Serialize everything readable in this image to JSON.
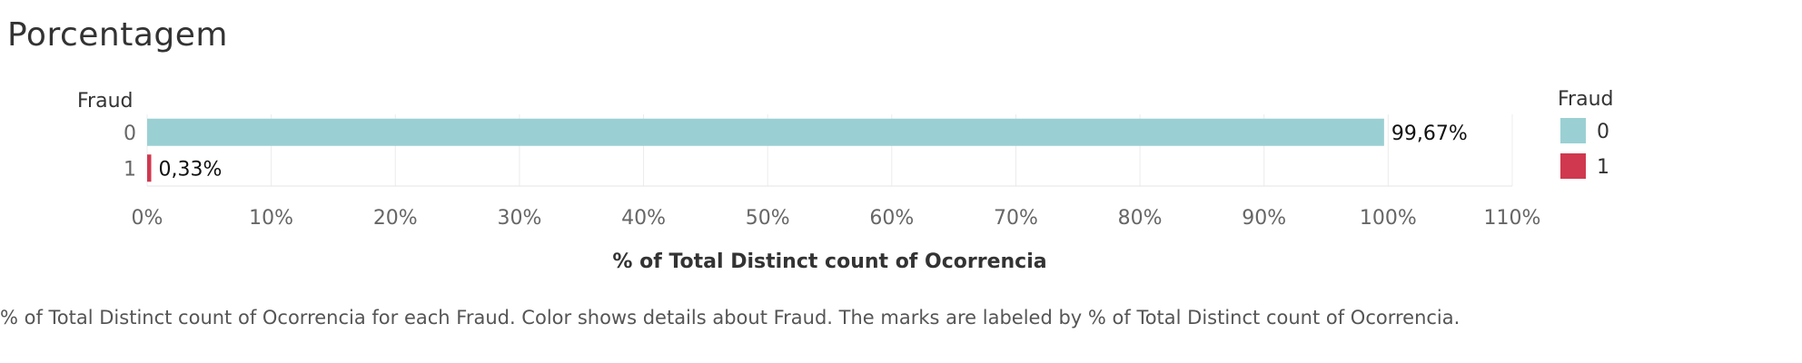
{
  "title": "Porcentagem",
  "chart_data": {
    "type": "bar",
    "orientation": "horizontal",
    "row_header": "Fraud",
    "categories": [
      "0",
      "1"
    ],
    "values": [
      99.67,
      0.33
    ],
    "value_labels": [
      "99,67%",
      "0,33%"
    ],
    "colors": [
      "#9ad0d3",
      "#d0384f"
    ],
    "xlim": [
      0,
      110
    ],
    "xticks": [
      0,
      10,
      20,
      30,
      40,
      50,
      60,
      70,
      80,
      90,
      100,
      110
    ],
    "xtick_labels": [
      "0%",
      "10%",
      "20%",
      "30%",
      "40%",
      "50%",
      "60%",
      "70%",
      "80%",
      "90%",
      "100%",
      "110%"
    ],
    "xlabel": "% of Total Distinct count of Ocorrencia",
    "grid": true,
    "legend": {
      "title": "Fraud",
      "position": "right",
      "items": [
        {
          "label": "0",
          "color": "#9ad0d3"
        },
        {
          "label": "1",
          "color": "#d0384f"
        }
      ]
    }
  },
  "caption": "% of Total Distinct count of Ocorrencia for each Fraud.  Color shows details about Fraud.  The marks are labeled by % of Total Distinct count of Ocorrencia."
}
